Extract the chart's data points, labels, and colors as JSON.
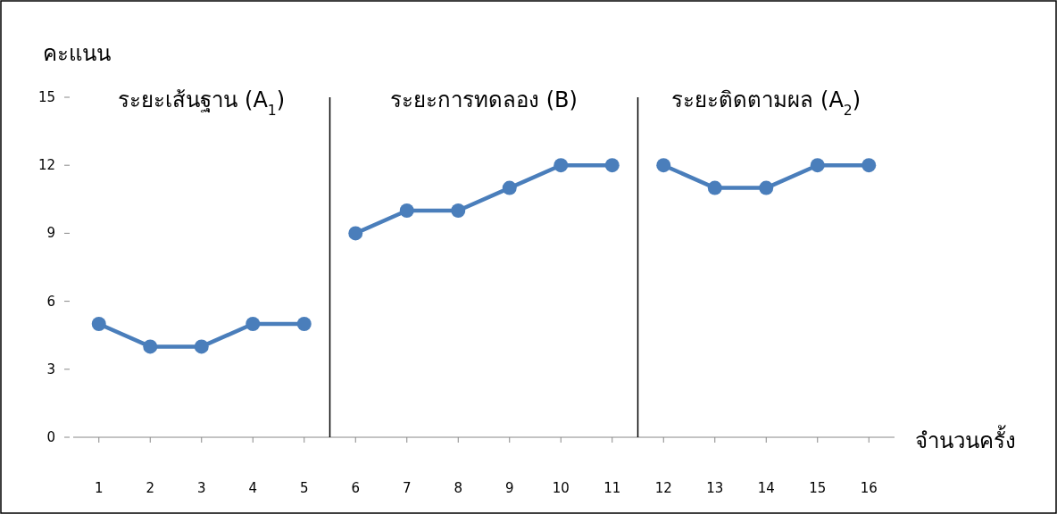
{
  "chart_data": {
    "type": "line",
    "ylabel": "คะแนน",
    "xlabel": "จำนวนครั้ง",
    "categories": [
      "1",
      "2",
      "3",
      "4",
      "5",
      "6",
      "7",
      "8",
      "9",
      "10",
      "11",
      "12",
      "13",
      "14",
      "15",
      "16"
    ],
    "series": [
      {
        "color": "#4a7ebb",
        "values": [
          5,
          4,
          4,
          5,
          5,
          null,
          null,
          null,
          null,
          null,
          null,
          null,
          null,
          null,
          null,
          null
        ]
      },
      {
        "color": "#4a7ebb",
        "values": [
          null,
          null,
          null,
          null,
          null,
          9,
          10,
          10,
          11,
          12,
          12,
          null,
          null,
          null,
          null,
          null
        ]
      },
      {
        "color": "#4a7ebb",
        "values": [
          null,
          null,
          null,
          null,
          null,
          null,
          null,
          null,
          null,
          null,
          null,
          12,
          11,
          11,
          12,
          12
        ]
      }
    ],
    "ylim": [
      0,
      15
    ],
    "yticks": [
      0,
      3,
      6,
      9,
      12,
      15
    ],
    "annotations": [
      "ระยะเส้นฐาน (A$_{1}$)",
      "ระยะการทดลอง (B)",
      "ระยะติดตามผล (A$_{2}$)"
    ],
    "marker": "circle",
    "line_style": "solid"
  }
}
